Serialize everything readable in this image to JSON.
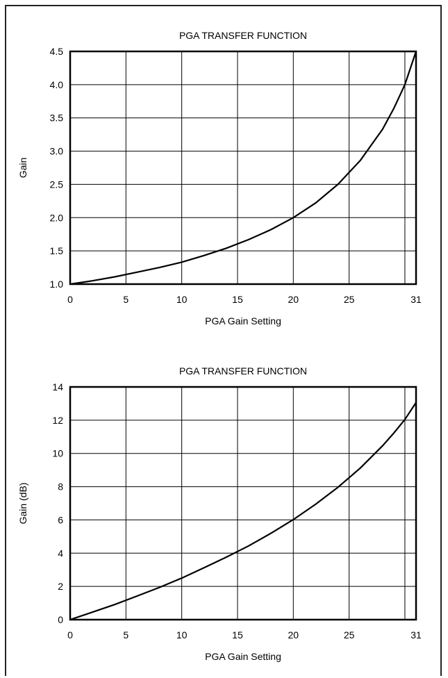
{
  "chart_data": [
    {
      "type": "line",
      "title": "PGA TRANSFER FUNCTION",
      "xlabel": "PGA Gain Setting",
      "ylabel": "Gain",
      "xlim": [
        0,
        31
      ],
      "ylim": [
        1.0,
        4.5
      ],
      "x_ticks": [
        0,
        5,
        10,
        15,
        20,
        25,
        31
      ],
      "x_tick_labels": [
        "0",
        "5",
        "10",
        "15",
        "20",
        "25",
        "31"
      ],
      "y_ticks": [
        1.0,
        1.5,
        2.0,
        2.5,
        3.0,
        3.5,
        4.0,
        4.5
      ],
      "y_tick_labels": [
        "1.0",
        "1.5",
        "2.0",
        "2.5",
        "3.0",
        "3.5",
        "4.0",
        "4.5"
      ],
      "x_grid": [
        5,
        10,
        15,
        20,
        25,
        30
      ],
      "grid": true,
      "series": [
        {
          "x": [
            0,
            2,
            4,
            6,
            8,
            10,
            12,
            14,
            16,
            18,
            20,
            22,
            24,
            26,
            28,
            29,
            30,
            31
          ],
          "values": [
            1.0,
            1.05,
            1.11,
            1.18,
            1.25,
            1.33,
            1.43,
            1.54,
            1.67,
            1.82,
            2.0,
            2.22,
            2.5,
            2.86,
            3.33,
            3.64,
            4.0,
            4.5
          ]
        }
      ]
    },
    {
      "type": "line",
      "title": "PGA TRANSFER FUNCTION",
      "xlabel": "PGA Gain Setting",
      "ylabel": "Gain (dB)",
      "xlim": [
        0,
        31
      ],
      "ylim": [
        0,
        14
      ],
      "x_ticks": [
        0,
        5,
        10,
        15,
        20,
        25,
        31
      ],
      "x_tick_labels": [
        "0",
        "5",
        "10",
        "15",
        "20",
        "25",
        "31"
      ],
      "y_ticks": [
        0,
        2,
        4,
        6,
        8,
        10,
        12,
        14
      ],
      "y_tick_labels": [
        "0",
        "2",
        "4",
        "6",
        "8",
        "10",
        "12",
        "14"
      ],
      "x_grid": [
        5,
        10,
        15,
        20,
        25,
        30
      ],
      "grid": true,
      "series": [
        {
          "x": [
            0,
            2,
            4,
            6,
            8,
            10,
            12,
            14,
            16,
            18,
            20,
            22,
            24,
            26,
            28,
            29,
            30,
            31
          ],
          "values": [
            0,
            0.45,
            0.91,
            1.42,
            1.94,
            2.5,
            3.12,
            3.76,
            4.44,
            5.2,
            6.02,
            6.94,
            7.96,
            9.12,
            10.46,
            11.22,
            12.04,
            13.06
          ]
        }
      ]
    }
  ]
}
